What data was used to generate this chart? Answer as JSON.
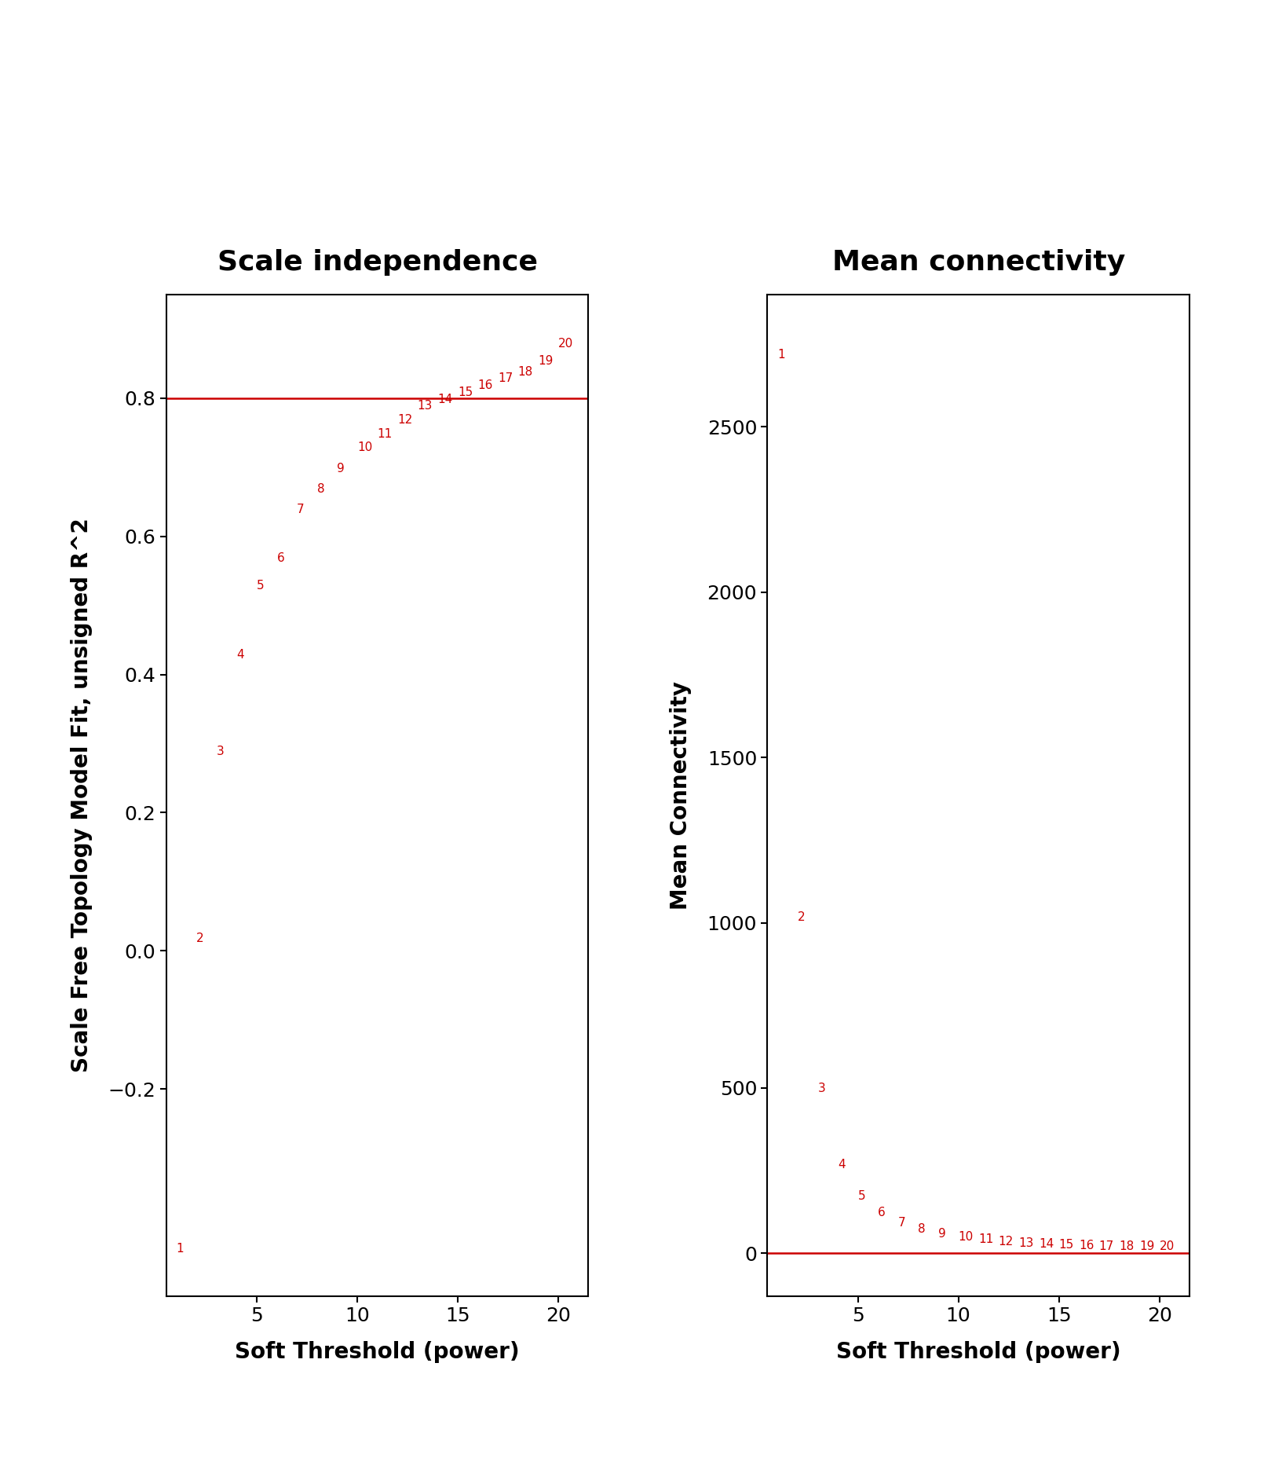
{
  "powers": [
    1,
    2,
    3,
    4,
    5,
    6,
    7,
    8,
    9,
    10,
    11,
    12,
    13,
    14,
    15,
    16,
    17,
    18,
    19,
    20
  ],
  "scale_independence": [
    -0.44,
    0.01,
    0.28,
    0.42,
    0.52,
    0.56,
    0.63,
    0.66,
    0.69,
    0.72,
    0.74,
    0.76,
    0.78,
    0.79,
    0.8,
    0.81,
    0.82,
    0.83,
    0.845,
    0.87
  ],
  "mean_connectivity": [
    2700,
    1000,
    480,
    250,
    155,
    105,
    75,
    55,
    42,
    32,
    24,
    18,
    13,
    10,
    7.5,
    5.5,
    4.2,
    3.2,
    2.5,
    2.0
  ],
  "scale_indep_hline": 0.8,
  "mean_conn_hline": 0,
  "title_left": "Scale independence",
  "title_right": "Mean connectivity",
  "xlabel": "Soft Threshold (power)",
  "ylabel_left": "Scale Free Topology Model Fit, unsigned R^2",
  "ylabel_right": "Mean Connectivity",
  "xlim": [
    0.5,
    21.5
  ],
  "ylim_left": [
    -0.5,
    0.95
  ],
  "ylim_right": [
    -130,
    2900
  ],
  "yticks_left": [
    -0.2,
    0.0,
    0.2,
    0.4,
    0.6,
    0.8
  ],
  "yticks_right": [
    0,
    500,
    1000,
    1500,
    2000,
    2500
  ],
  "xticks": [
    5,
    10,
    15,
    20
  ],
  "point_color": "#cc0000",
  "line_color": "#cc0000",
  "bg_color": "#ffffff",
  "title_fontsize": 26,
  "label_fontsize": 20,
  "tick_fontsize": 18,
  "point_fontsize": 11
}
